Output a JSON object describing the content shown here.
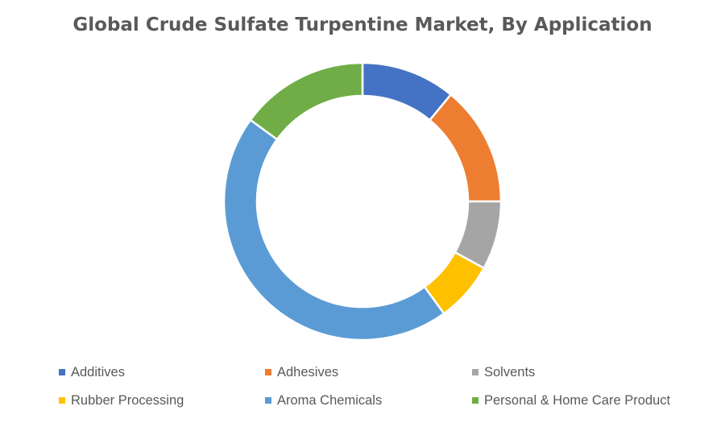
{
  "colors": {
    "additives": "#4472C4",
    "adhesives": "#ED7D31",
    "solvents": "#A5A5A5",
    "rubber": "#FFC000",
    "aroma": "#5B9BD5",
    "personal": "#70AD47"
  },
  "chart_data": {
    "type": "pie",
    "style": "doughnut",
    "title": "Global Crude Sulfate Turpentine Market, By Application",
    "legend_position": "bottom",
    "categories": [
      "Additives",
      "Adhesives",
      "Solvents",
      "Rubber Processing",
      "Aroma Chemicals",
      "Personal & Home Care Product"
    ],
    "values": [
      11,
      14,
      8,
      7,
      45,
      15
    ],
    "colors": [
      "#4472C4",
      "#ED7D31",
      "#A5A5A5",
      "#FFC000",
      "#5B9BD5",
      "#70AD47"
    ]
  }
}
